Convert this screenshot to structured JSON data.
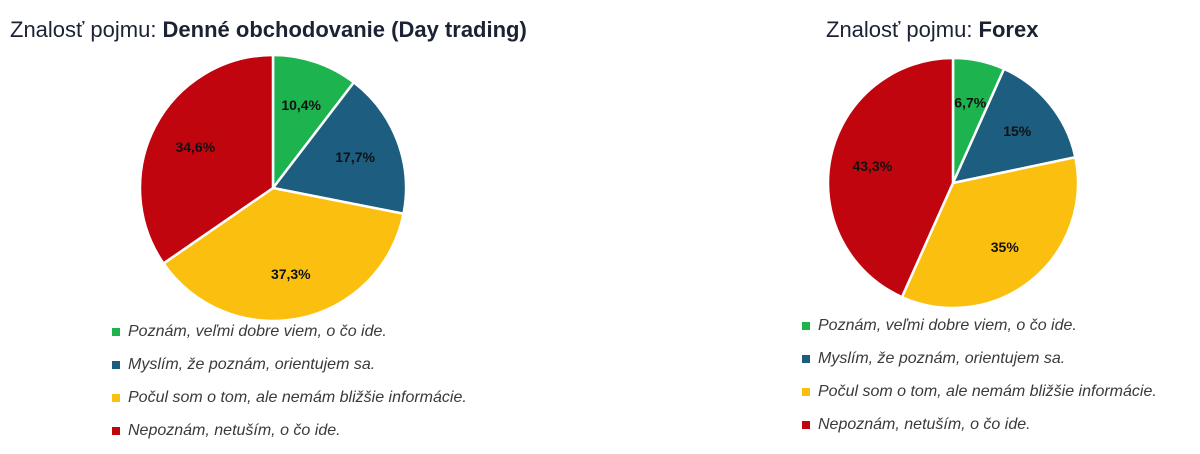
{
  "chart_data": [
    {
      "type": "pie",
      "title_prefix": "Znalosť pojmu: ",
      "title_bold": "Denné obchodovanie (Day trading)",
      "categories": [
        "Poznám, veľmi dobre viem, o čo ide.",
        "Myslím, že poznám, orientujem sa.",
        "Počul som o tom, ale nemám bližšie informácie.",
        "Nepoznám, netuším, o čo ide."
      ],
      "values": [
        10.4,
        17.7,
        37.3,
        34.6
      ],
      "data_labels": [
        "10,4%",
        "17,7%",
        "37,3%",
        "34,6%"
      ],
      "colors": [
        "#1db34f",
        "#1c5d80",
        "#fbc00f",
        "#c0050f"
      ],
      "legend_position": "bottom"
    },
    {
      "type": "pie",
      "title_prefix": "Znalosť pojmu: ",
      "title_bold": "Forex",
      "categories": [
        "Poznám, veľmi dobre viem, o čo ide.",
        "Myslím, že poznám, orientujem sa.",
        "Počul som o tom, ale nemám bližšie informácie.",
        "Nepoznám, netuším, o čo ide."
      ],
      "values": [
        6.7,
        15,
        35,
        43.3
      ],
      "data_labels": [
        "6,7%",
        "15%",
        "35%",
        "43,3%"
      ],
      "colors": [
        "#1db34f",
        "#1c5d80",
        "#fbc00f",
        "#c0050f"
      ],
      "legend_position": "bottom"
    }
  ]
}
